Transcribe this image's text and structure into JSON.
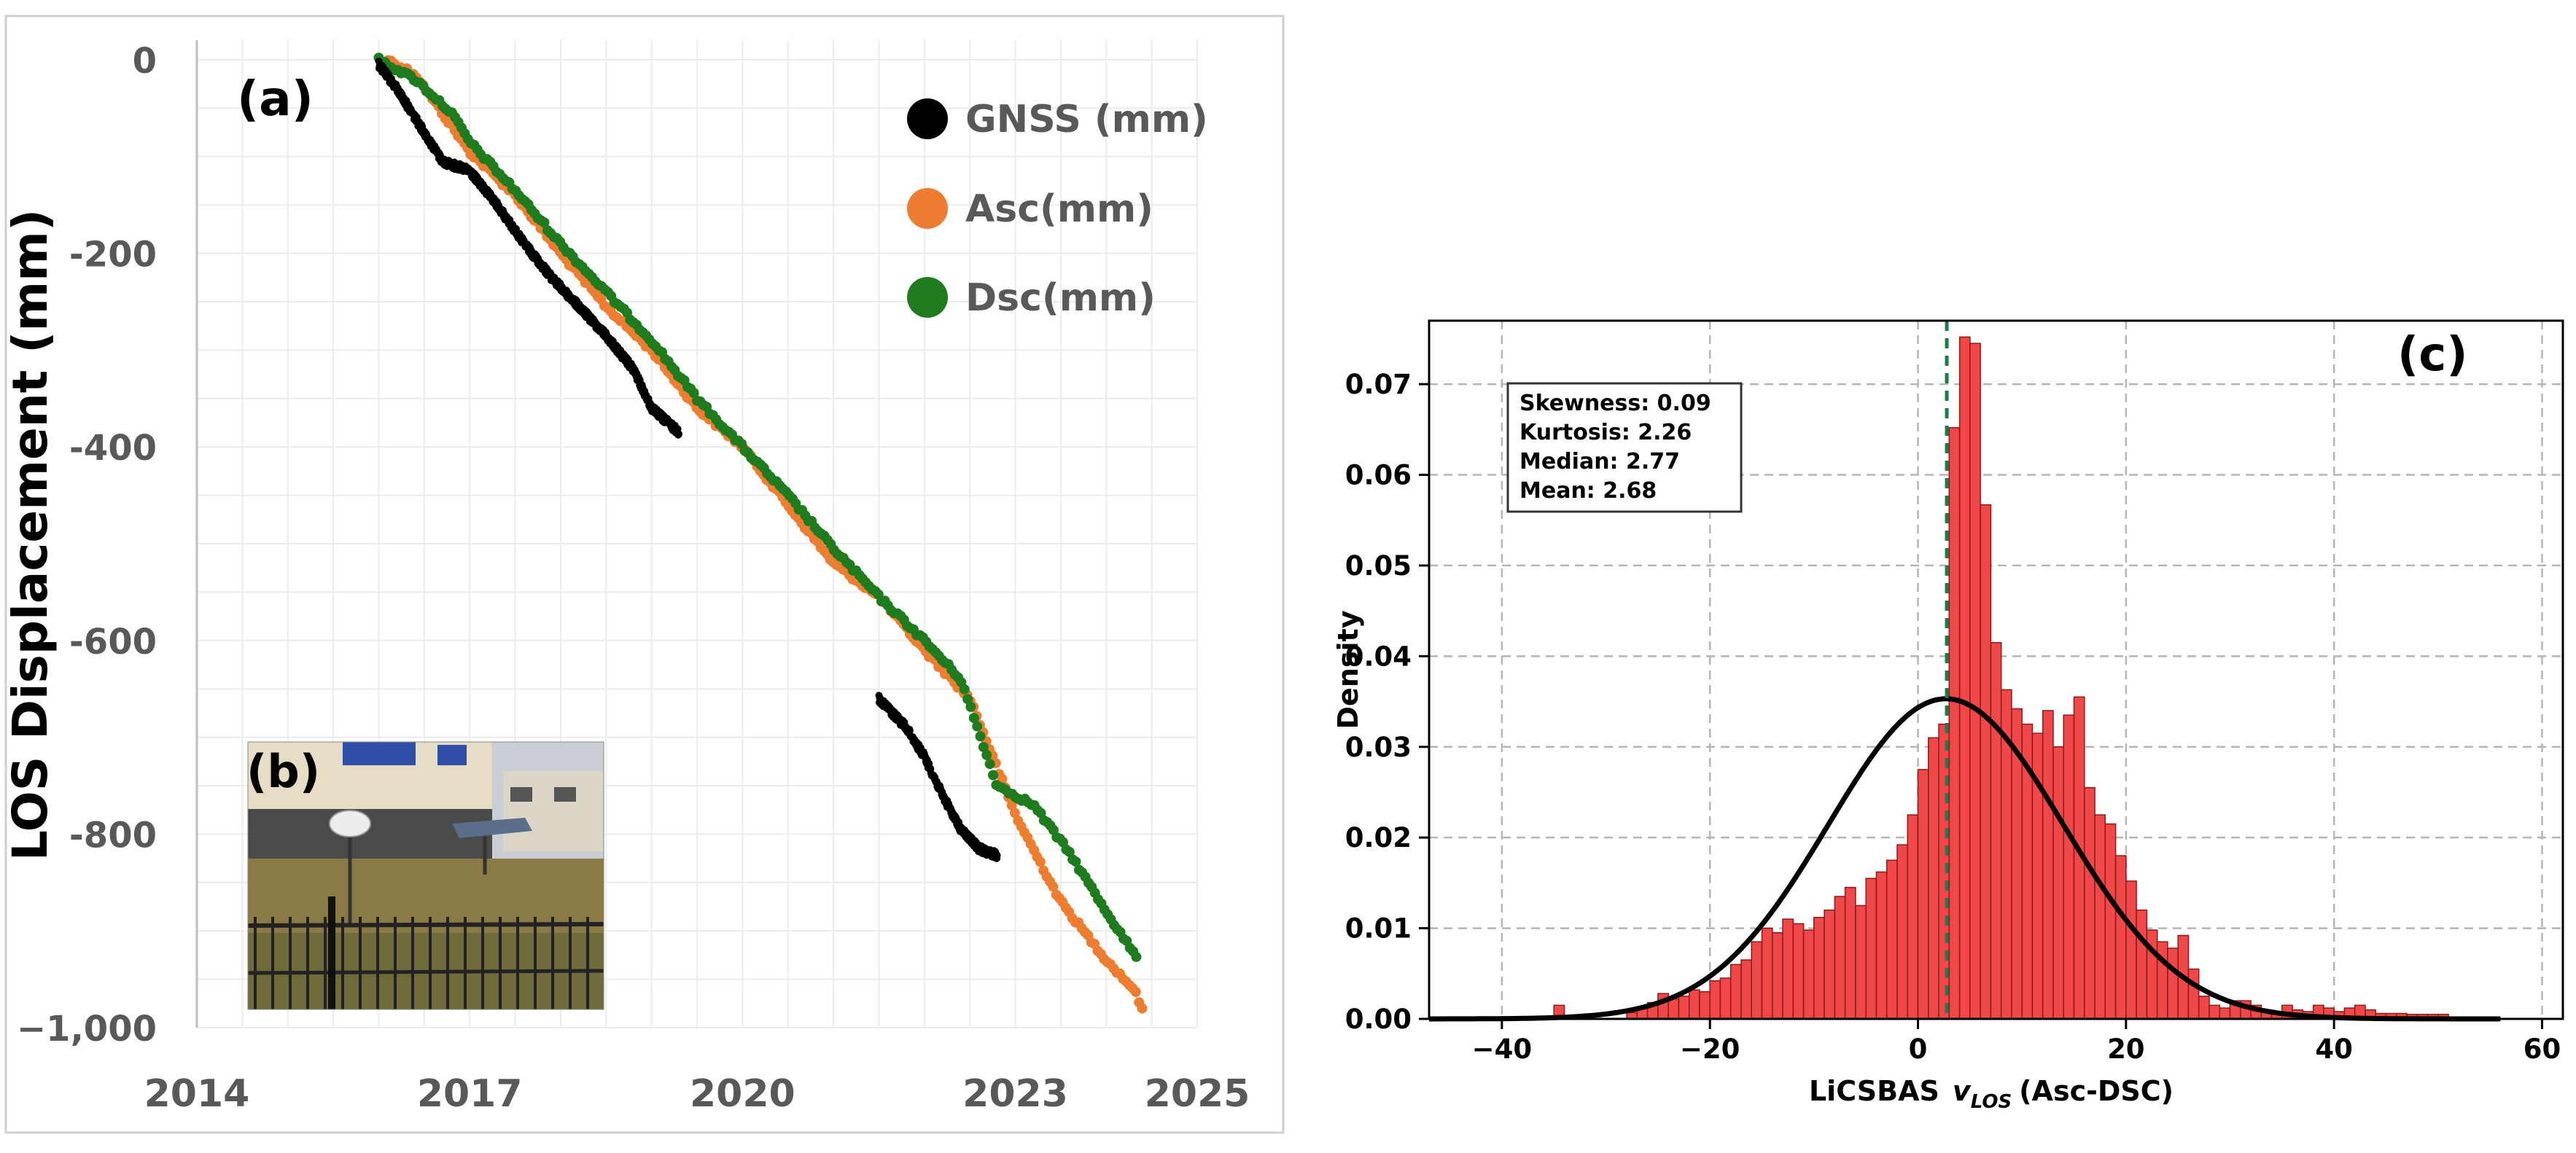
{
  "chart_data": [
    {
      "panel": "a",
      "type": "scatter",
      "panel_label": "(a)",
      "ylabel": "LOS Displacement (mm)",
      "xlabel": "",
      "x_ticks": [
        "2014",
        "2017",
        "2020",
        "2023",
        "2025"
      ],
      "x_tick_values": [
        2014,
        2017,
        2020,
        2023,
        2025
      ],
      "y_ticks": [
        "0",
        "-200",
        "-400",
        "-600",
        "-800",
        "−1,000"
      ],
      "y_tick_values": [
        0,
        -200,
        -400,
        -600,
        -800,
        -1000
      ],
      "xlim": [
        2014,
        2025
      ],
      "ylim": [
        -1000,
        0
      ],
      "grid": true,
      "legend_position": "top-right",
      "series": [
        {
          "name": "GNSS (mm)",
          "color": "#000000",
          "segments": [
            [
              [
                2016.0,
                -5
              ],
              [
                2016.2,
                -30
              ],
              [
                2016.5,
                -75
              ],
              [
                2016.7,
                -105
              ],
              [
                2017.0,
                -115
              ],
              [
                2017.3,
                -150
              ],
              [
                2017.6,
                -190
              ],
              [
                2017.9,
                -225
              ],
              [
                2018.2,
                -255
              ],
              [
                2018.5,
                -285
              ],
              [
                2018.8,
                -320
              ],
              [
                2019.0,
                -360
              ],
              [
                2019.3,
                -385
              ]
            ],
            [
              [
                2021.5,
                -660
              ],
              [
                2021.8,
                -690
              ],
              [
                2022.0,
                -720
              ],
              [
                2022.2,
                -760
              ],
              [
                2022.4,
                -795
              ],
              [
                2022.6,
                -815
              ],
              [
                2022.8,
                -822
              ]
            ]
          ]
        },
        {
          "name": "Asc(mm)",
          "color": "#ED7D31",
          "segments": [
            [
              [
                2016.1,
                0
              ],
              [
                2016.4,
                -15
              ],
              [
                2016.7,
                -55
              ],
              [
                2017.0,
                -95
              ],
              [
                2017.5,
                -140
              ],
              [
                2018.0,
                -200
              ],
              [
                2018.5,
                -255
              ],
              [
                2019.0,
                -300
              ],
              [
                2019.5,
                -360
              ],
              [
                2020.0,
                -400
              ],
              [
                2020.5,
                -460
              ],
              [
                2021.0,
                -520
              ],
              [
                2021.5,
                -555
              ],
              [
                2022.0,
                -610
              ],
              [
                2022.5,
                -660
              ],
              [
                2023.0,
                -780
              ],
              [
                2023.5,
                -870
              ],
              [
                2024.0,
                -930
              ],
              [
                2024.3,
                -960
              ],
              [
                2024.4,
                -980
              ]
            ]
          ]
        },
        {
          "name": "Dsc(mm)",
          "color": "#1E7B1E",
          "segments": [
            [
              [
                2016.0,
                0
              ],
              [
                2016.4,
                -20
              ],
              [
                2016.8,
                -55
              ],
              [
                2017.0,
                -85
              ],
              [
                2017.5,
                -135
              ],
              [
                2018.0,
                -190
              ],
              [
                2018.5,
                -240
              ],
              [
                2019.0,
                -290
              ],
              [
                2019.5,
                -350
              ],
              [
                2020.0,
                -400
              ],
              [
                2020.5,
                -450
              ],
              [
                2021.0,
                -505
              ],
              [
                2021.5,
                -555
              ],
              [
                2022.0,
                -600
              ],
              [
                2022.4,
                -640
              ],
              [
                2022.8,
                -750
              ],
              [
                2023.2,
                -770
              ],
              [
                2023.6,
                -820
              ],
              [
                2024.0,
                -880
              ],
              [
                2024.35,
                -930
              ]
            ]
          ]
        }
      ]
    },
    {
      "panel": "c",
      "type": "bar",
      "panel_label": "(c)",
      "xlabel": "LiCSBAS",
      "xlabel_symbol": "v",
      "xlabel_subscript": "LOS",
      "xlabel_suffix": "(Asc-DSC)",
      "ylabel": "Density",
      "x_ticks": [
        "−40",
        "−20",
        "0",
        "20",
        "40",
        "60"
      ],
      "x_tick_values": [
        -40,
        -20,
        0,
        20,
        40,
        60
      ],
      "y_ticks": [
        "0.00",
        "0.01",
        "0.02",
        "0.03",
        "0.04",
        "0.05",
        "0.06",
        "0.07"
      ],
      "y_tick_values": [
        0,
        0.01,
        0.02,
        0.03,
        0.04,
        0.05,
        0.06,
        0.07
      ],
      "xlim": [
        -47,
        62
      ],
      "ylim": [
        0,
        0.077
      ],
      "grid": true,
      "bin_start": -35,
      "bin_width": 1,
      "bar_color": "#F04848",
      "bar_edge_color": "#8B1A1A",
      "values": [
        0.0015,
        0,
        0,
        0,
        0,
        0,
        0,
        0.0007,
        0.0012,
        0.0018,
        0.0028,
        0.0022,
        0.0025,
        0.0032,
        0.003,
        0.0042,
        0.0045,
        0.006,
        0.0065,
        0.0085,
        0.01,
        0.0095,
        0.011,
        0.0105,
        0.0098,
        0.0112,
        0.012,
        0.0135,
        0.0145,
        0.0125,
        0.0155,
        0.0162,
        0.0175,
        0.0192,
        0.0225,
        0.0275,
        0.031,
        0.0325,
        0.0652,
        0.0752,
        0.0745,
        0.0567,
        0.0415,
        0.0363,
        0.0342,
        0.0325,
        0.0315,
        0.034,
        0.03,
        0.0335,
        0.0355,
        0.0255,
        0.0225,
        0.0215,
        0.018,
        0.0152,
        0.012,
        0.0098,
        0.0085,
        0.0078,
        0.0092,
        0.0055,
        0.0025,
        0.0015,
        0.0012,
        0.002,
        0.002,
        0.0015,
        0.001,
        0.0008,
        0.0015,
        0.001,
        0.0008,
        0.0015,
        0.0012,
        0.0008,
        0.0012,
        0.0015,
        0.001,
        0.0006,
        0.0006,
        0.0006,
        0.0005,
        0.0005,
        0.0005,
        0.0005
      ],
      "normal_fit": {
        "mean": 2.68,
        "std": 11.3,
        "x_range": [
          -47,
          56
        ],
        "color": "#000000"
      },
      "median_line": {
        "value": 2.77,
        "color": "#1E7B4E"
      },
      "stats_box": [
        "Skewness: 0.09",
        "Kurtosis: 2.26",
        "Median: 2.77",
        "Mean: 2.68"
      ]
    }
  ],
  "inset_photo": {
    "label": "(b)",
    "sky_color": "#C9CDD4",
    "building_color": "#E6DDC4",
    "window_color": "#2F4FA8",
    "grass_color": "#8A7A45",
    "fence_color": "#2A2A2A"
  }
}
